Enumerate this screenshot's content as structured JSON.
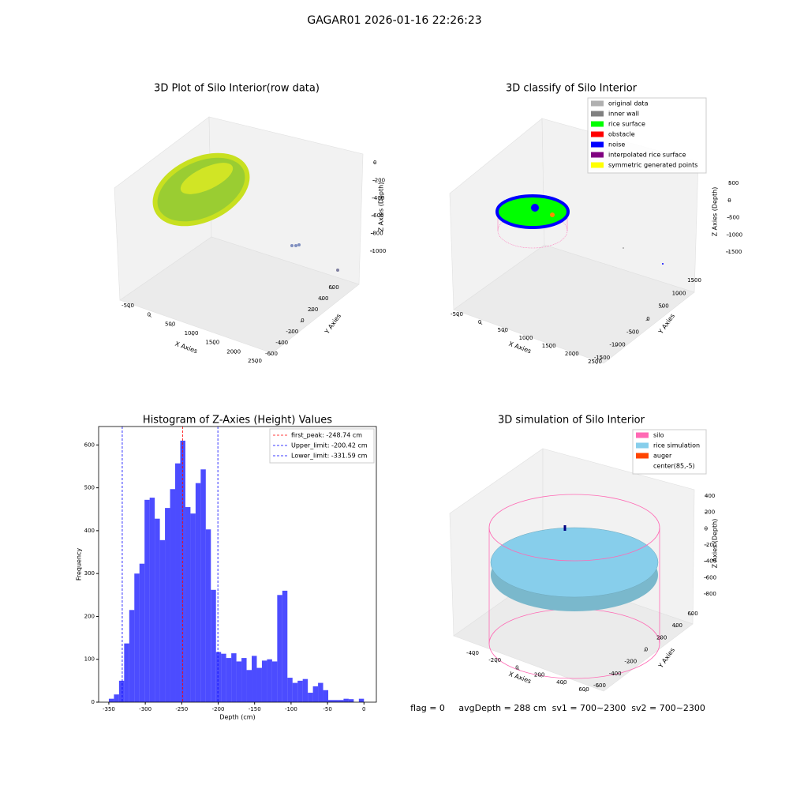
{
  "title": "GAGAR01 2026-01-16 22:26:23",
  "footer": "flag = 0     avgDepth = 288 cm  sv1 = 700~2300  sv2 = 700~2300",
  "chart_data": [
    {
      "type": "scatter3d",
      "title": "3D Plot of Silo Interior(row data)",
      "xlabel": "X Axies",
      "ylabel": "Y Axies",
      "zlabel": "Z Axies (Depth)",
      "xticks": [
        -500,
        0,
        500,
        1000,
        1500,
        2000,
        2500
      ],
      "yticks": [
        -600,
        -400,
        -200,
        0,
        200,
        400,
        600
      ],
      "zticks": [
        -1000,
        -800,
        -600,
        -400,
        -200,
        0
      ]
    },
    {
      "type": "scatter3d",
      "title": "3D classify of Silo Interior",
      "xlabel": "X Axies",
      "ylabel": "Y Axies",
      "zlabel": "Z Axies (Depth)",
      "xticks": [
        -500,
        0,
        500,
        1000,
        1500,
        2000,
        2500
      ],
      "yticks": [
        -1500,
        -1000,
        -500,
        0,
        500,
        1000,
        1500
      ],
      "zticks": [
        -1500,
        -1000,
        -500,
        0,
        500
      ],
      "legend": [
        {
          "name": "original data",
          "color": "#b0b0b0"
        },
        {
          "name": "inner wall",
          "color": "#808080"
        },
        {
          "name": "rice surface",
          "color": "#00ff00"
        },
        {
          "name": "obstacle",
          "color": "#ff0000"
        },
        {
          "name": "noise",
          "color": "#0000ff"
        },
        {
          "name": "interpolated rice surface",
          "color": "#800080"
        },
        {
          "name": "symmetric generated points",
          "color": "#ffff00"
        }
      ]
    },
    {
      "type": "histogram",
      "title": "Histogram of Z-Axies (Height) Values",
      "xlabel": "Depth (cm)",
      "ylabel": "Frequency",
      "color": "#0000ff",
      "bins": [
        -350,
        -343,
        -336,
        -329,
        -322,
        -315,
        -308,
        -301,
        -294,
        -287,
        -280,
        -273,
        -266,
        -259,
        -252,
        -245,
        -238,
        -231,
        -224,
        -217,
        -210,
        -203,
        -196,
        -189,
        -182,
        -175,
        -168,
        -161,
        -154,
        -147,
        -140,
        -133,
        -126,
        -119,
        -112,
        -105,
        -98,
        -91,
        -84,
        -77,
        -70,
        -63,
        -56,
        -49,
        -42,
        -35,
        -28,
        -21,
        -14,
        -7,
        0
      ],
      "values": [
        8,
        18,
        50,
        137,
        215,
        300,
        323,
        472,
        477,
        428,
        378,
        453,
        497,
        557,
        610,
        455,
        440,
        511,
        543,
        403,
        262,
        117,
        113,
        103,
        114,
        95,
        103,
        75,
        108,
        80,
        97,
        100,
        95,
        250,
        260,
        57,
        45,
        50,
        54,
        22,
        37,
        45,
        28,
        5,
        5,
        5,
        8,
        7,
        0,
        8
      ],
      "xlim": [
        -364,
        17
      ],
      "ylim": [
        0,
        643
      ],
      "xticks": [
        -350,
        -300,
        -250,
        -200,
        -150,
        -100,
        -50,
        0
      ],
      "yticks": [
        0,
        100,
        200,
        300,
        400,
        500,
        600
      ],
      "vlines": [
        {
          "label": "first_peak: -248.74 cm",
          "value": -248.74,
          "color": "#ff0000"
        },
        {
          "label": "Upper_limit: -200.42 cm",
          "value": -200.42,
          "color": "#0000ff"
        },
        {
          "label": "Lower_limit: -331.59 cm",
          "value": -331.59,
          "color": "#0000ff"
        }
      ],
      "legend_position": "upper right"
    },
    {
      "type": "surface3d",
      "title": "3D simulation of Silo Interior",
      "xlabel": "X Axies",
      "ylabel": "Y Axies",
      "zlabel": "Z Axies (Depth)",
      "xticks": [
        -400,
        -200,
        0,
        200,
        400,
        600
      ],
      "yticks": [
        -600,
        -400,
        -200,
        0,
        200,
        400,
        600
      ],
      "zticks": [
        -800,
        -600,
        -400,
        -200,
        0,
        200,
        400
      ],
      "legend": [
        {
          "name": "silo",
          "color": "#ff69b4"
        },
        {
          "name": "rice simulation",
          "color": "#87ceeb"
        },
        {
          "name": "auger",
          "color": "#ff4500"
        },
        {
          "name": "center(85,-5)",
          "color": "#ffffff"
        }
      ]
    }
  ]
}
